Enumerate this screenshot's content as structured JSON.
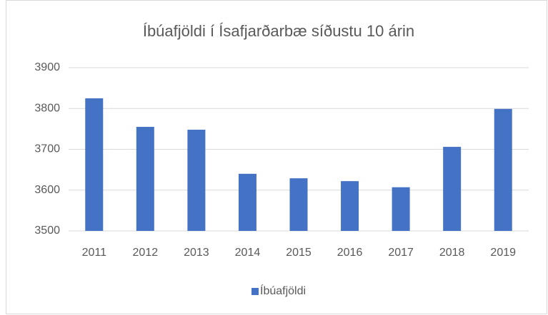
{
  "chart_data": {
    "type": "bar",
    "title": "Íbúafjöldi í Ísafjarðarbæ síðustu 10 árin",
    "categories": [
      "2011",
      "2012",
      "2013",
      "2014",
      "2015",
      "2016",
      "2017",
      "2018",
      "2019"
    ],
    "series": [
      {
        "name": "Íbúafjöldi",
        "color": "#4472c4",
        "values": [
          3825,
          3755,
          3748,
          3640,
          3629,
          3622,
          3607,
          3706,
          3799
        ]
      }
    ],
    "ylim": [
      3500,
      3900
    ],
    "yticks": [
      3500,
      3600,
      3700,
      3800,
      3900
    ],
    "grid": true,
    "legend": "bottom"
  }
}
